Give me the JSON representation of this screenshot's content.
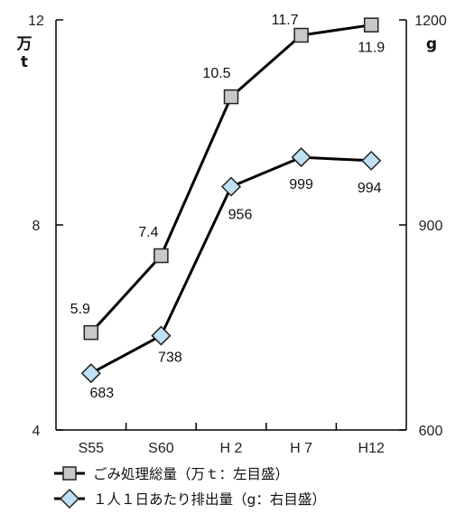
{
  "chart_data": {
    "type": "line",
    "categories": [
      "S55",
      "S60",
      "H 2",
      "H 7",
      "H12"
    ],
    "left_axis": {
      "unit_line1": "万",
      "unit_line2": "t",
      "ticks": [
        "12",
        "8",
        "4"
      ],
      "ylim": [
        4,
        12
      ]
    },
    "right_axis": {
      "unit": "g",
      "ticks": [
        "1200",
        "900",
        "600"
      ],
      "ylim": [
        600,
        1200
      ]
    },
    "series": [
      {
        "name": "ごみ処理総量（万ｔ：左目盛）",
        "axis": "left",
        "marker": "square",
        "color": "#c8c8c8",
        "values": [
          5.9,
          7.4,
          10.5,
          11.7,
          11.9
        ],
        "labels": [
          "5.9",
          "7.4",
          "10.5",
          "11.7",
          "11.9"
        ]
      },
      {
        "name": "１人１日あたり排出量（g：右目盛）",
        "axis": "right",
        "marker": "diamond",
        "color": "#bfe0f5",
        "values": [
          683,
          738,
          956,
          999,
          994
        ],
        "labels": [
          "683",
          "738",
          "956",
          "999",
          "994"
        ]
      }
    ]
  }
}
